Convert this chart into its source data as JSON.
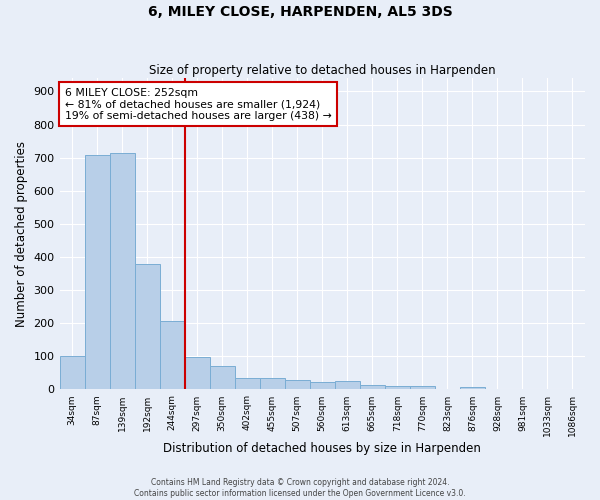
{
  "title": "6, MILEY CLOSE, HARPENDEN, AL5 3DS",
  "subtitle": "Size of property relative to detached houses in Harpenden",
  "xlabel": "Distribution of detached houses by size in Harpenden",
  "ylabel": "Number of detached properties",
  "categories": [
    "34sqm",
    "87sqm",
    "139sqm",
    "192sqm",
    "244sqm",
    "297sqm",
    "350sqm",
    "402sqm",
    "455sqm",
    "507sqm",
    "560sqm",
    "613sqm",
    "665sqm",
    "718sqm",
    "770sqm",
    "823sqm",
    "876sqm",
    "928sqm",
    "981sqm",
    "1033sqm",
    "1086sqm"
  ],
  "values": [
    100,
    708,
    713,
    378,
    208,
    97,
    72,
    35,
    35,
    28,
    22,
    25,
    12,
    10,
    10,
    0,
    8,
    0,
    0,
    0,
    0
  ],
  "bar_color": "#b8cfe8",
  "bar_edge_color": "#7aadd4",
  "red_line_x": 4.5,
  "annotation_line1": "6 MILEY CLOSE: 252sqm",
  "annotation_line2": "← 81% of detached houses are smaller (1,924)",
  "annotation_line3": "19% of semi-detached houses are larger (438) →",
  "annotation_box_facecolor": "#ffffff",
  "annotation_box_edgecolor": "#cc0000",
  "vline_color": "#cc0000",
  "ylim": [
    0,
    940
  ],
  "yticks": [
    0,
    100,
    200,
    300,
    400,
    500,
    600,
    700,
    800,
    900
  ],
  "background_color": "#e8eef8",
  "footer_line1": "Contains HM Land Registry data © Crown copyright and database right 2024.",
  "footer_line2": "Contains public sector information licensed under the Open Government Licence v3.0."
}
